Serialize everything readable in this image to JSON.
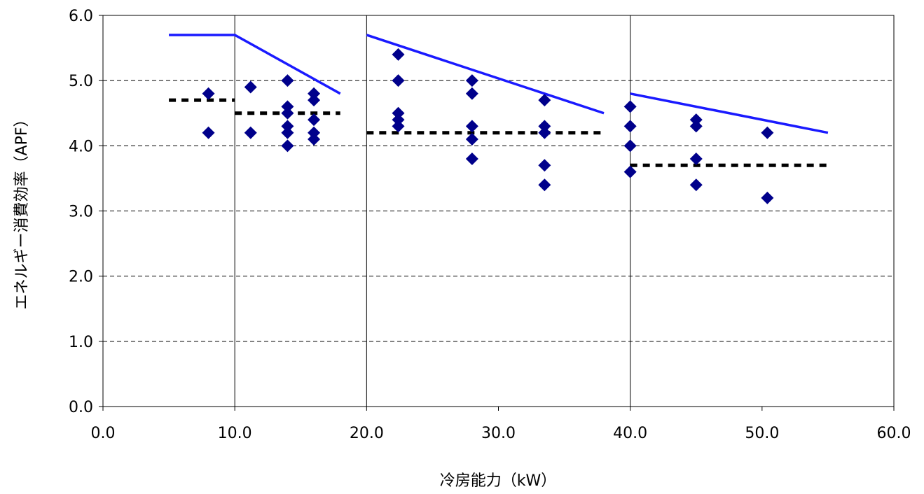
{
  "chart_data": {
    "type": "scatter",
    "xlabel": "冷房能力（kW）",
    "ylabel": "エネルギー消費効率（APF）",
    "xlim": [
      0,
      60
    ],
    "ylim": [
      0,
      6
    ],
    "x_ticks": [
      "0.0",
      "10.0",
      "20.0",
      "30.0",
      "40.0",
      "50.0",
      "60.0"
    ],
    "y_ticks": [
      "0.0",
      "1.0",
      "2.0",
      "3.0",
      "4.0",
      "5.0",
      "6.0"
    ],
    "grid": {
      "horizontal": "dashed",
      "vertical_at": [
        10,
        20,
        40
      ]
    },
    "colors": {
      "marker": "#00008b",
      "target_line": "#1a1aff",
      "dotted_line": "#000000"
    },
    "marker_shape": "diamond",
    "points": [
      {
        "x": 8.0,
        "y": 4.8
      },
      {
        "x": 8.0,
        "y": 4.2
      },
      {
        "x": 11.2,
        "y": 4.9
      },
      {
        "x": 11.2,
        "y": 4.2
      },
      {
        "x": 14.0,
        "y": 5.0
      },
      {
        "x": 14.0,
        "y": 4.6
      },
      {
        "x": 14.0,
        "y": 4.5
      },
      {
        "x": 14.0,
        "y": 4.3
      },
      {
        "x": 14.0,
        "y": 4.2
      },
      {
        "x": 14.0,
        "y": 4.0
      },
      {
        "x": 16.0,
        "y": 4.8
      },
      {
        "x": 16.0,
        "y": 4.7
      },
      {
        "x": 16.0,
        "y": 4.4
      },
      {
        "x": 16.0,
        "y": 4.2
      },
      {
        "x": 16.0,
        "y": 4.1
      },
      {
        "x": 22.4,
        "y": 5.4
      },
      {
        "x": 22.4,
        "y": 5.0
      },
      {
        "x": 22.4,
        "y": 4.5
      },
      {
        "x": 22.4,
        "y": 4.4
      },
      {
        "x": 22.4,
        "y": 4.3
      },
      {
        "x": 28.0,
        "y": 5.0
      },
      {
        "x": 28.0,
        "y": 4.8
      },
      {
        "x": 28.0,
        "y": 4.3
      },
      {
        "x": 28.0,
        "y": 4.1
      },
      {
        "x": 28.0,
        "y": 3.8
      },
      {
        "x": 33.5,
        "y": 4.7
      },
      {
        "x": 33.5,
        "y": 4.3
      },
      {
        "x": 33.5,
        "y": 4.2
      },
      {
        "x": 33.5,
        "y": 3.7
      },
      {
        "x": 33.5,
        "y": 3.4
      },
      {
        "x": 40.0,
        "y": 4.6
      },
      {
        "x": 40.0,
        "y": 4.3
      },
      {
        "x": 40.0,
        "y": 4.0
      },
      {
        "x": 40.0,
        "y": 3.6
      },
      {
        "x": 45.0,
        "y": 4.4
      },
      {
        "x": 45.0,
        "y": 4.3
      },
      {
        "x": 45.0,
        "y": 3.8
      },
      {
        "x": 45.0,
        "y": 3.4
      },
      {
        "x": 50.4,
        "y": 4.2
      },
      {
        "x": 50.4,
        "y": 3.2
      }
    ],
    "target_lines": [
      [
        [
          5.0,
          5.7
        ],
        [
          10.0,
          5.7
        ],
        [
          18.0,
          4.8
        ]
      ],
      [
        [
          20.0,
          5.7
        ],
        [
          38.0,
          4.5
        ]
      ],
      [
        [
          40.0,
          4.8
        ],
        [
          55.0,
          4.2
        ]
      ]
    ],
    "dotted_lines": [
      [
        [
          5.0,
          4.7
        ],
        [
          10.0,
          4.7
        ]
      ],
      [
        [
          10.0,
          4.5
        ],
        [
          18.0,
          4.5
        ]
      ],
      [
        [
          20.0,
          4.2
        ],
        [
          38.0,
          4.2
        ]
      ],
      [
        [
          40.0,
          3.7
        ],
        [
          55.0,
          3.7
        ]
      ]
    ]
  }
}
